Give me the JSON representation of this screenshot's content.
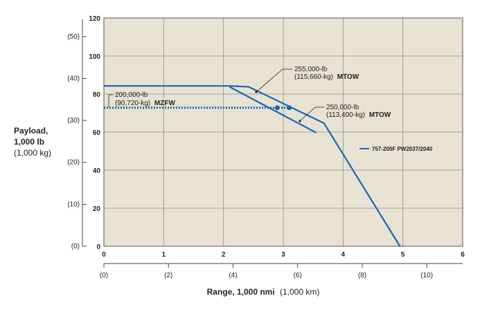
{
  "chart_data": {
    "type": "line",
    "xlabel": "Range, 1,000 nmi",
    "xlabel_alt": "(1,000 km)",
    "ylabel_lines": [
      "Payload,",
      "1,000 lb",
      "(1,000 kg)"
    ],
    "xlim": [
      0,
      6
    ],
    "ylim": [
      0,
      120
    ],
    "grid": true,
    "x_ticks": [
      "0",
      "1",
      "2",
      "3",
      "4",
      "5",
      "6"
    ],
    "x_ticks_km": [
      "(0)",
      "(2)",
      "(4)",
      "(6)",
      "(8)",
      "(10)"
    ],
    "y_ticks": [
      "0",
      "20",
      "40",
      "60",
      "80",
      "100",
      "120"
    ],
    "y_ticks_kg": [
      "(0)",
      "(10)",
      "(20)",
      "(30)",
      "(40)",
      "(50)"
    ],
    "series": [
      {
        "name": "757-200F PW2037/2040",
        "lines": [
          {
            "label": "255,000-lb MTOW",
            "points": [
              [
                0,
                84.3
              ],
              [
                2.1,
                84.3
              ],
              [
                2.42,
                83.8
              ],
              [
                3.68,
                64.7
              ],
              [
                4.95,
                0
              ]
            ]
          },
          {
            "label": "250,000-lb MTOW",
            "points": [
              [
                2.1,
                83.8
              ],
              [
                3.55,
                59.7
              ]
            ]
          }
        ],
        "mzfw_line": {
          "label": "200,000-lb MZFW",
          "points": [
            [
              0,
              72.8
            ],
            [
              3.1,
              72.8
            ]
          ]
        },
        "markers": [
          [
            2.9,
            72.8
          ],
          [
            3.1,
            72.8
          ]
        ]
      }
    ],
    "annotations": [
      {
        "line1": "255,000-lb",
        "line2": "(115,660-kg)",
        "line3": "MTOW"
      },
      {
        "line1": "250,000-lb",
        "line2": "(113,400-kg)",
        "line3": "MTOW"
      },
      {
        "line1": "200,000-lb",
        "line2": "(90,720-kg)",
        "line3": "MZFW"
      }
    ],
    "colors": {
      "plot_bg": "#e8e2d2",
      "line": "#1565b8",
      "grid": "#8c8c8c"
    }
  }
}
